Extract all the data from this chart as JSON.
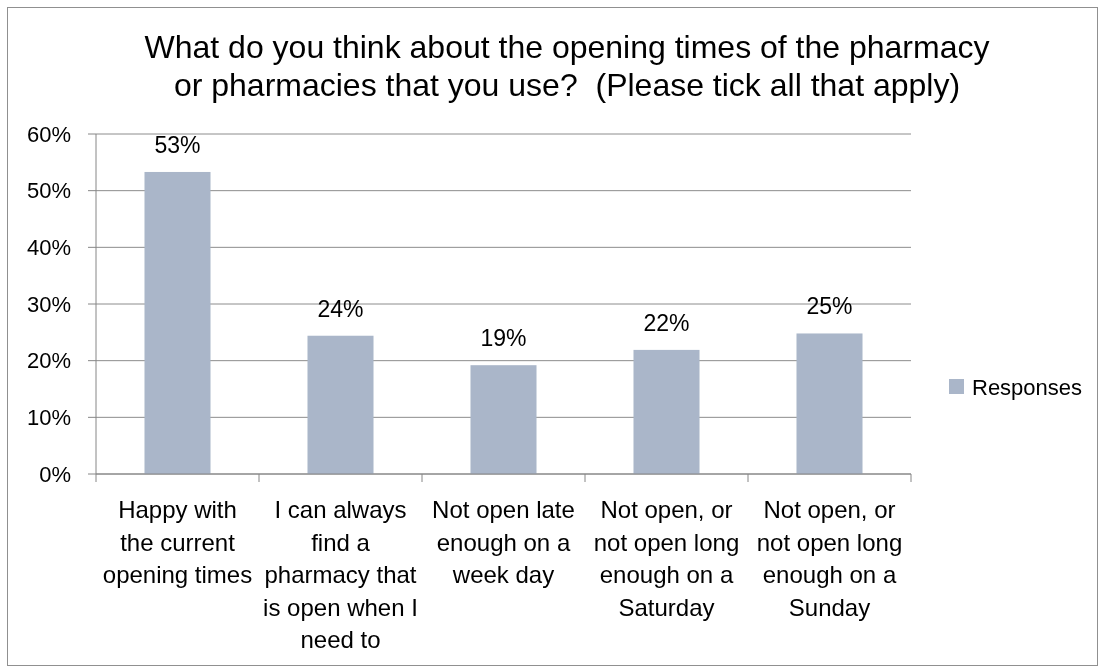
{
  "chart_data": {
    "type": "bar",
    "title": "What do you think about the opening times of the pharmacy\nor pharmacies that you use?  (Please tick all that apply)",
    "categories": [
      "Happy with the current opening times",
      "I can always find a pharmacy that is open when I need to",
      "Not open late enough on a week day",
      "Not open, or not open long enough on a Saturday",
      "Not open, or not open long enough on a Sunday"
    ],
    "series": [
      {
        "name": "Responses",
        "color": "#aab6c9",
        "values": [
          53.3,
          24.4,
          19.2,
          21.9,
          24.8
        ],
        "value_labels": [
          "53%",
          "24%",
          "19%",
          "22%",
          "25%"
        ]
      }
    ],
    "ylim": [
      0,
      60
    ],
    "yticks": [
      {
        "value": 0,
        "label": "0%"
      },
      {
        "value": 10,
        "label": "10%"
      },
      {
        "value": 20,
        "label": "20%"
      },
      {
        "value": 30,
        "label": "30%"
      },
      {
        "value": 40,
        "label": "40%"
      },
      {
        "value": 50,
        "label": "50%"
      },
      {
        "value": 60,
        "label": "60%"
      }
    ],
    "grid": "y",
    "legend": "right"
  }
}
